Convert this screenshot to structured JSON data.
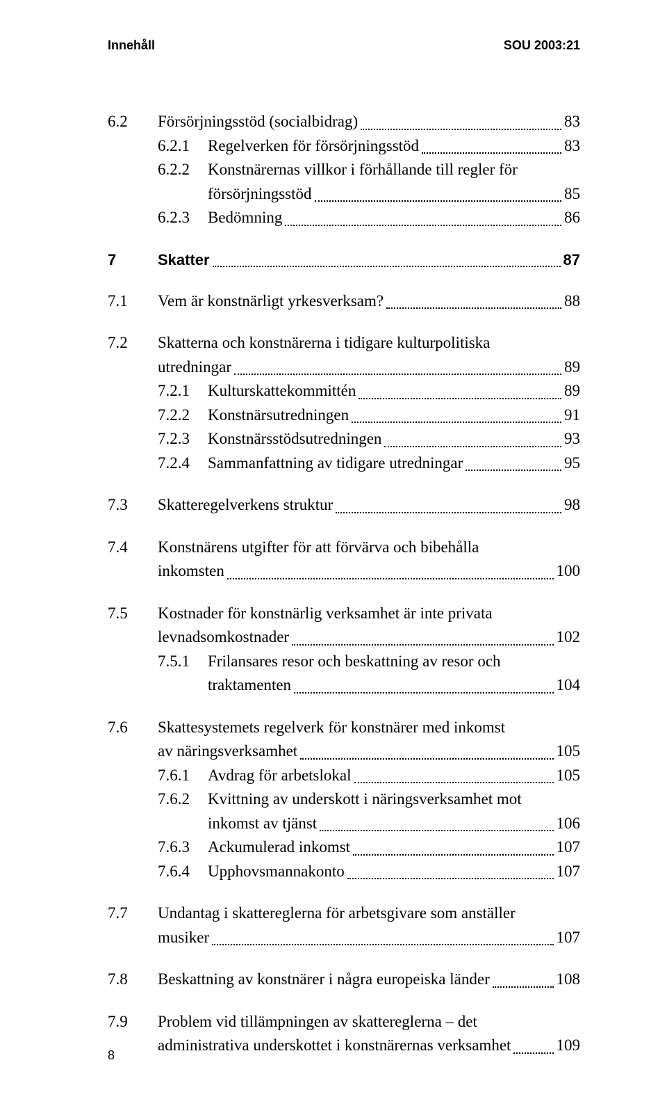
{
  "header": {
    "left": "Innehåll",
    "right": "SOU 2003:21"
  },
  "footer": {
    "page": "8"
  },
  "rows": [
    {
      "num": "6.2",
      "label": "Försörjningsstöd (socialbidrag)",
      "page": "83",
      "class": ""
    },
    {
      "num": "6.2.1",
      "label": "Regelverken för försörjningsstöd",
      "page": "83",
      "class": "indent-1"
    },
    {
      "num": "6.2.2",
      "label": "Konstnärernas villkor i förhållande till regler för",
      "page": "",
      "class": "indent-1",
      "noleader": true
    },
    {
      "num": "",
      "label": "försörjningsstöd",
      "page": "85",
      "class": "indent-1"
    },
    {
      "num": "6.2.3",
      "label": "Bedömning",
      "page": "86",
      "class": "indent-1"
    },
    {
      "space": true
    },
    {
      "num": "7",
      "label": "Skatter",
      "page": "87",
      "class": "bold"
    },
    {
      "space": true
    },
    {
      "num": "7.1",
      "label": "Vem är konstnärligt yrkesverksam?",
      "page": "88",
      "class": ""
    },
    {
      "space": true
    },
    {
      "num": "7.2",
      "label": "Skatterna och konstnärerna i tidigare kulturpolitiska",
      "page": "",
      "class": "",
      "noleader": true
    },
    {
      "num": "",
      "label": "utredningar",
      "page": "89",
      "class": ""
    },
    {
      "num": "7.2.1",
      "label": "Kulturskattekommittén",
      "page": "89",
      "class": "indent-1"
    },
    {
      "num": "7.2.2",
      "label": "Konstnärsutredningen",
      "page": "91",
      "class": "indent-1"
    },
    {
      "num": "7.2.3",
      "label": "Konstnärsstödsutredningen",
      "page": "93",
      "class": "indent-1"
    },
    {
      "num": "7.2.4",
      "label": "Sammanfattning av tidigare utredningar",
      "page": "95",
      "class": "indent-1"
    },
    {
      "space": true
    },
    {
      "num": "7.3",
      "label": "Skatteregelverkens struktur",
      "page": "98",
      "class": ""
    },
    {
      "space": true
    },
    {
      "num": "7.4",
      "label": "Konstnärens utgifter för att förvärva och bibehålla",
      "page": "",
      "class": "",
      "noleader": true
    },
    {
      "num": "",
      "label": "inkomsten",
      "page": "100",
      "class": ""
    },
    {
      "space": true
    },
    {
      "num": "7.5",
      "label": "Kostnader för konstnärlig verksamhet är inte privata",
      "page": "",
      "class": "",
      "noleader": true
    },
    {
      "num": "",
      "label": "levnadsomkostnader",
      "page": "102",
      "class": ""
    },
    {
      "num": "7.5.1",
      "label": "Frilansares resor och beskattning av resor och",
      "page": "",
      "class": "indent-1",
      "noleader": true
    },
    {
      "num": "",
      "label": "traktamenten",
      "page": "104",
      "class": "indent-1"
    },
    {
      "space": true
    },
    {
      "num": "7.6",
      "label": "Skattesystemets regelverk för konstnärer med inkomst",
      "page": "",
      "class": "",
      "noleader": true
    },
    {
      "num": "",
      "label": "av näringsverksamhet",
      "page": "105",
      "class": ""
    },
    {
      "num": "7.6.1",
      "label": "Avdrag för arbetslokal",
      "page": "105",
      "class": "indent-1"
    },
    {
      "num": "7.6.2",
      "label": "Kvittning av underskott i näringsverksamhet mot",
      "page": "",
      "class": "indent-1",
      "noleader": true
    },
    {
      "num": "",
      "label": "inkomst av tjänst",
      "page": "106",
      "class": "indent-1"
    },
    {
      "num": "7.6.3",
      "label": "Ackumulerad inkomst",
      "page": "107",
      "class": "indent-1"
    },
    {
      "num": "7.6.4",
      "label": "Upphovsmannakonto",
      "page": "107",
      "class": "indent-1"
    },
    {
      "space": true
    },
    {
      "num": "7.7",
      "label": "Undantag i skattereglerna för arbetsgivare som anställer",
      "page": "",
      "class": "",
      "noleader": true
    },
    {
      "num": "",
      "label": "musiker",
      "page": "107",
      "class": ""
    },
    {
      "space": true
    },
    {
      "num": "7.8",
      "label": "Beskattning av konstnärer i några europeiska länder",
      "page": "108",
      "class": ""
    },
    {
      "space": true
    },
    {
      "num": "7.9",
      "label": "Problem vid tillämpningen av skattereglerna – det",
      "page": "",
      "class": "",
      "noleader": true
    },
    {
      "num": "",
      "label": "administrativa underskottet i konstnärernas verksamhet",
      "page": "109",
      "class": ""
    }
  ]
}
